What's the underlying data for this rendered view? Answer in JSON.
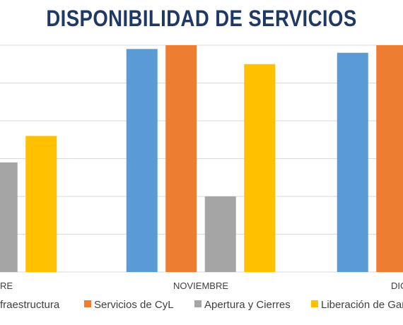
{
  "chart_data": {
    "type": "bar",
    "title": "DISPONIBILIDAD DE SERVICIOS",
    "categories": [
      "RE",
      "NOVIEMBRE",
      "DIC"
    ],
    "series": [
      {
        "name": "fraestructura",
        "color": "#5b9bd5",
        "values": [
          null,
          99.5,
          99.0
        ]
      },
      {
        "name": "Servicios de CyL",
        "color": "#ed7d31",
        "values": [
          null,
          100,
          100
        ]
      },
      {
        "name": "Apertura y Cierres",
        "color": "#a5a5a5",
        "values": [
          84.5,
          80.0,
          null
        ]
      },
      {
        "name": "Liberación de Gara",
        "color": "#ffc000",
        "values": [
          88.0,
          97.5,
          null
        ]
      }
    ],
    "ylim": [
      70,
      100
    ],
    "grid": true,
    "legend": "bottom"
  }
}
